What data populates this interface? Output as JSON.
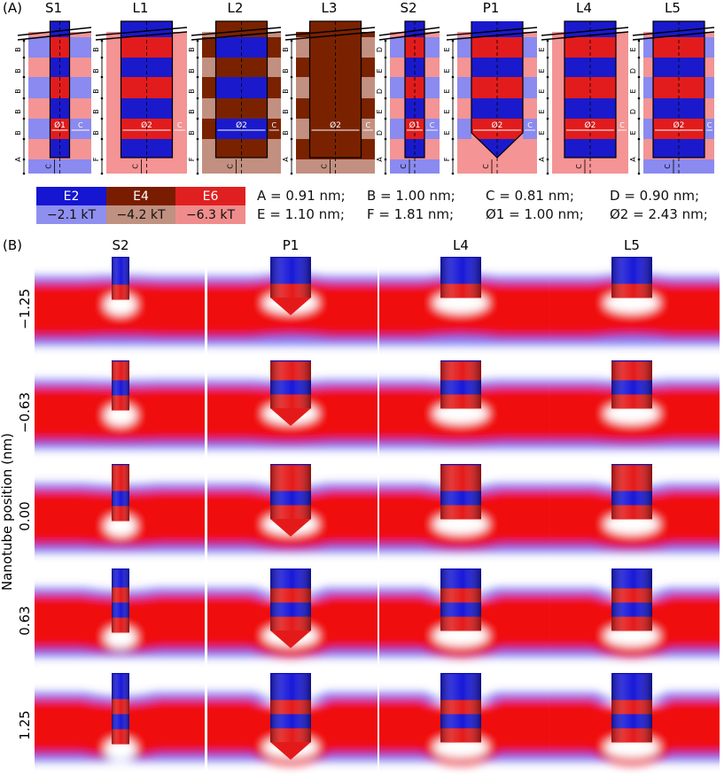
{
  "panel_a": {
    "label": "(A)",
    "columns": [
      {
        "name": "S1",
        "band_type": "B",
        "diameter_label": "Ø1",
        "length_label": "C"
      },
      {
        "name": "L1",
        "band_type": "B",
        "diameter_label": "Ø2",
        "length_label": "C"
      },
      {
        "name": "L2",
        "band_type": "B",
        "diameter_label": "Ø2",
        "length_label": "C"
      },
      {
        "name": "L3",
        "band_type": "B",
        "diameter_label": "Ø2",
        "length_label": "C"
      },
      {
        "name": "S2",
        "band_type": "D",
        "diameter_label": "Ø1",
        "length_label": "C"
      },
      {
        "name": "P1",
        "band_type": "E",
        "diameter_label": "Ø2",
        "length_label": "C"
      },
      {
        "name": "L4",
        "band_type": "E",
        "diameter_label": "Ø2",
        "length_label": "C"
      },
      {
        "name": "L5",
        "band_type": "E",
        "diameter_label": "Ø2",
        "length_label": "C"
      }
    ],
    "left_letters": {
      "S1": [
        "B",
        "B",
        "B",
        "B",
        "B",
        "A"
      ],
      "L1": [
        "B",
        "B",
        "B",
        "B",
        "B",
        "F"
      ],
      "L2": [
        "B",
        "B",
        "B",
        "B",
        "B",
        "F"
      ],
      "L3": [
        "B",
        "B",
        "B",
        "B",
        "B",
        "A"
      ],
      "S2": [
        "D",
        "E",
        "D",
        "E",
        "D",
        "A"
      ],
      "P1": [
        "E",
        "E",
        "E",
        "E",
        "E",
        "F"
      ],
      "L4": [
        "E",
        "E",
        "E",
        "E",
        "E",
        "A"
      ],
      "L5": [
        "E",
        "D",
        "E",
        "D",
        "E",
        "A"
      ]
    }
  },
  "legend": {
    "items": [
      {
        "top": "E2",
        "bottom": "−2.1 kT",
        "top_color": "#1515d2",
        "bottom_color": "#8f8ff0",
        "text_color": "#ffffff"
      },
      {
        "top": "E4",
        "bottom": "−4.2 kT",
        "top_color": "#7a1c00",
        "bottom_color": "#c09080",
        "text_color": "#ffffff"
      },
      {
        "top": "E6",
        "bottom": "−6.3 kT",
        "top_color": "#e02020",
        "bottom_color": "#f08c8c",
        "text_color": "#ffffff"
      }
    ]
  },
  "measurements": {
    "row1": [
      "A = 0.91 nm;",
      "B = 1.00 nm;",
      "C  = 0.81 nm;",
      "D  = 0.90 nm;"
    ],
    "row2": [
      "E = 1.10 nm;",
      "F = 1.81 nm;",
      "Ø1 = 1.00 nm;",
      "Ø2 = 2.43 nm;"
    ]
  },
  "panel_b": {
    "label": "(B)",
    "y_axis_label": "Nanotube position (nm)",
    "columns": [
      "S2",
      "P1",
      "L4",
      "L5"
    ],
    "rows": [
      "−1.25",
      "−0.63",
      "0.00",
      "0.63",
      "1.25"
    ]
  },
  "colors": {
    "blue": "#1a1acc",
    "red": "#e21c1c",
    "light_blue": "#8a8af0",
    "light_red": "#f49494",
    "brown": "#7a2200",
    "light_brown": "#c29080"
  }
}
